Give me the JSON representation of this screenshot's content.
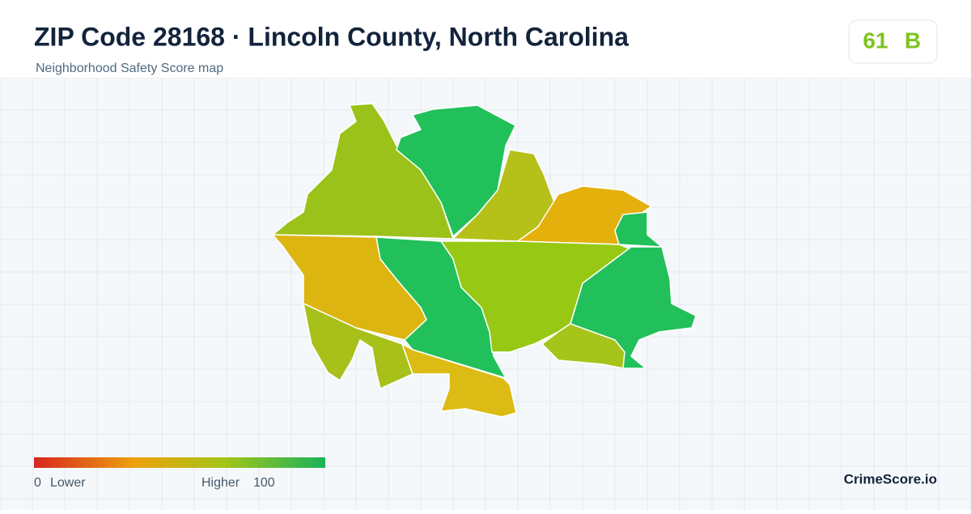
{
  "header": {
    "title": "ZIP Code 28168 · Lincoln County, North Carolina",
    "subtitle": "Neighborhood Safety Score map"
  },
  "score": {
    "value": 61,
    "grade": "B"
  },
  "legend": {
    "min": 0,
    "min_label": "Lower",
    "max_label": "Higher",
    "max": 100
  },
  "brand": "CrimeScore.io"
}
